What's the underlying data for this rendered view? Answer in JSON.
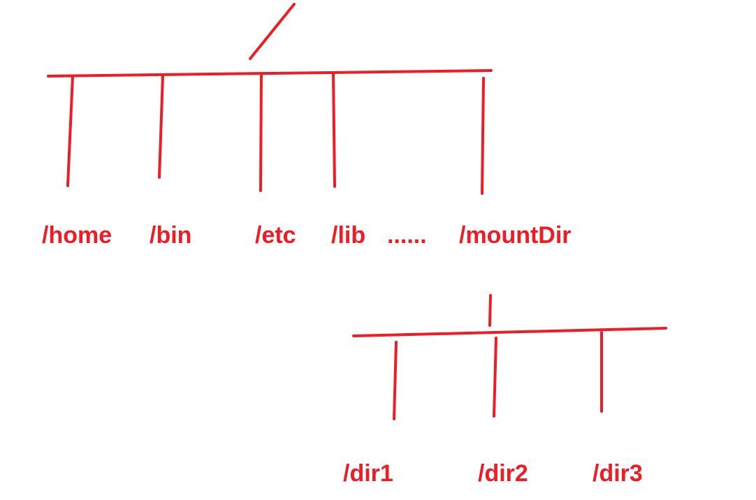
{
  "colors": {
    "ink": "#ee1c25",
    "background": "#ffffff"
  },
  "root_tree": {
    "dirs": [
      "/home",
      "/bin",
      "/etc",
      "/lib",
      "......",
      "/mountDir"
    ]
  },
  "mount_tree": {
    "dirs": [
      "/dir1",
      "/dir2",
      "/dir3"
    ]
  }
}
